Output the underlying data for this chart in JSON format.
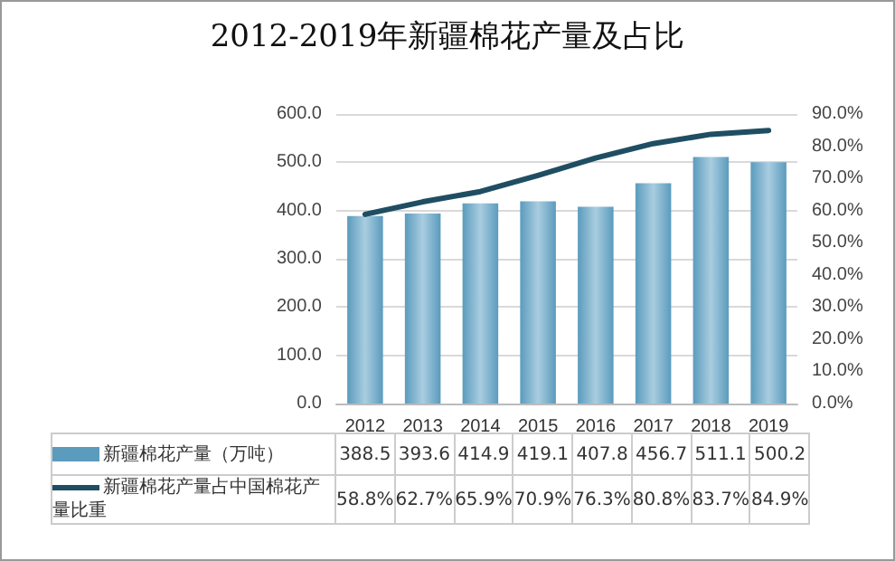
{
  "chart_data": {
    "type": "bar",
    "title": "2012-2019年新疆棉花产量及占比",
    "categories": [
      "2012",
      "2013",
      "2014",
      "2015",
      "2016",
      "2017",
      "2018",
      "2019"
    ],
    "series": [
      {
        "name": "新疆棉花产量（万吨）",
        "color": "#5b9bbd",
        "values": [
          388.5,
          393.6,
          414.9,
          419.1,
          407.8,
          456.7,
          511.1,
          500.2
        ],
        "value_labels": [
          "388.5",
          "393.6",
          "414.9",
          "419.1",
          "407.8",
          "456.7",
          "511.1",
          "500.2"
        ]
      },
      {
        "name": "新疆棉花产量占中国棉花产量比重",
        "type": "line",
        "axis": "y2",
        "color": "#1f4e63",
        "values": [
          58.8,
          62.7,
          65.9,
          70.9,
          76.3,
          80.8,
          83.7,
          84.9
        ],
        "value_labels": [
          "58.8%",
          "62.7%",
          "65.9%",
          "70.9%",
          "76.3%",
          "80.8%",
          "83.7%",
          "84.9%"
        ]
      }
    ],
    "ylim": [
      0,
      600
    ],
    "yticks": [
      {
        "value": 0,
        "label": "0.0"
      },
      {
        "value": 100,
        "label": "100.0"
      },
      {
        "value": 200,
        "label": "200.0"
      },
      {
        "value": 300,
        "label": "300.0"
      },
      {
        "value": 400,
        "label": "400.0"
      },
      {
        "value": 500,
        "label": "500.0"
      },
      {
        "value": 600,
        "label": "600.0"
      }
    ],
    "y2lim": [
      0,
      90
    ],
    "y2ticks": [
      {
        "value": 0,
        "label": "0.0%"
      },
      {
        "value": 10,
        "label": "10.0%"
      },
      {
        "value": 20,
        "label": "20.0%"
      },
      {
        "value": 30,
        "label": "30.0%"
      },
      {
        "value": 40,
        "label": "40.0%"
      },
      {
        "value": 50,
        "label": "50.0%"
      },
      {
        "value": 60,
        "label": "60.0%"
      },
      {
        "value": 70,
        "label": "70.0%"
      },
      {
        "value": 80,
        "label": "80.0%"
      },
      {
        "value": 90,
        "label": "90.0%"
      }
    ],
    "grid": "y",
    "legend": "bottom",
    "marker": "none",
    "line_style": "solid"
  }
}
